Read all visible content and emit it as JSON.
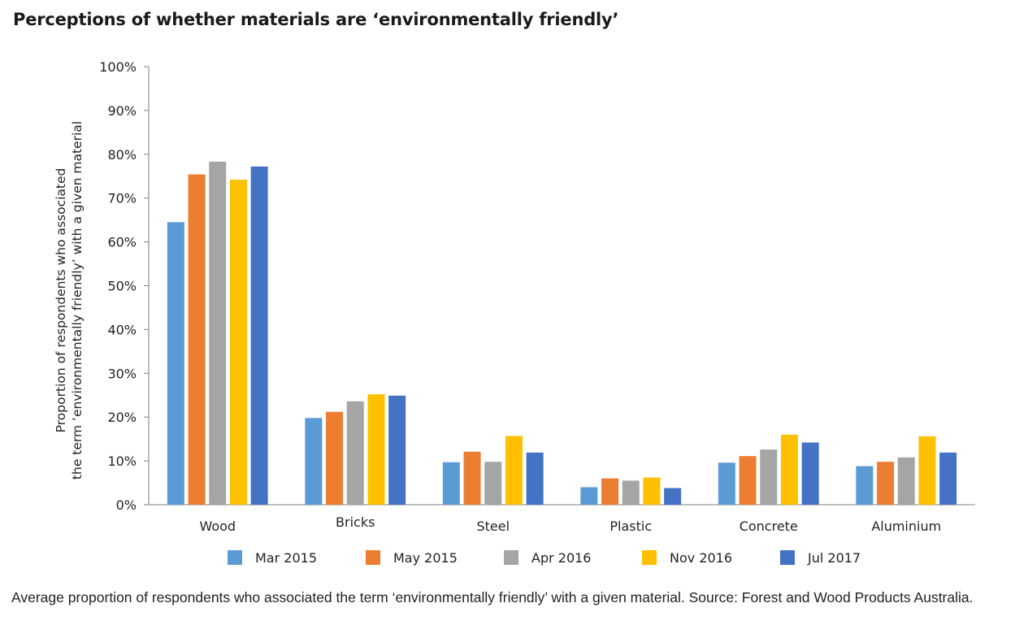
{
  "title": "Perceptions of whether materials are ‘environmentally friendly’",
  "caption": "Average proportion of respondents who associated the term ‘environmentally friendly’ with a given material. Source: Forest and Wood Products Australia.",
  "chart_data": {
    "type": "bar",
    "title": "Perceptions of whether materials are ‘environmentally friendly’",
    "ylabel_lines": [
      "Proportion of respondents who associated",
      "the term ‘environmentally friendly’ with a given material"
    ],
    "xlabel": "",
    "ylim": [
      0,
      100
    ],
    "yticks": [
      0,
      10,
      20,
      30,
      40,
      50,
      60,
      70,
      80,
      90,
      100
    ],
    "ytick_labels": [
      "0%",
      "10%",
      "20%",
      "30%",
      "40%",
      "50%",
      "60%",
      "70%",
      "80%",
      "90%",
      "100%"
    ],
    "grid": false,
    "legend_position": "bottom",
    "categories": [
      "Wood",
      "Bricks",
      "Steel",
      "Plastic",
      "Concrete",
      "Aluminium"
    ],
    "series": [
      {
        "name": "Mar 2015",
        "color": "#5B9BD5",
        "values": [
          64.5,
          19.8,
          9.7,
          4.0,
          9.6,
          8.8
        ]
      },
      {
        "name": "May 2015",
        "color": "#ED7D31",
        "values": [
          75.4,
          21.2,
          12.1,
          6.0,
          11.1,
          9.8
        ]
      },
      {
        "name": "Apr 2016",
        "color": "#A5A5A5",
        "values": [
          78.3,
          23.6,
          9.8,
          5.5,
          12.6,
          10.8
        ]
      },
      {
        "name": "Nov 2016",
        "color": "#FFC000",
        "values": [
          74.2,
          25.2,
          15.7,
          6.2,
          16.0,
          15.6
        ]
      },
      {
        "name": "Jul 2017",
        "color": "#4472C4",
        "values": [
          77.2,
          24.9,
          11.9,
          3.8,
          14.2,
          11.9
        ]
      }
    ]
  }
}
